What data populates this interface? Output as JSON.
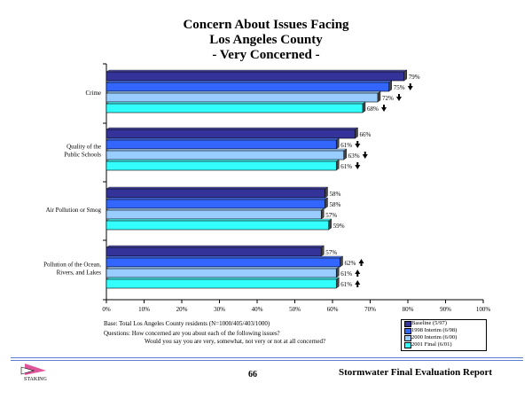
{
  "title_lines": [
    "Concern About Issues Facing",
    "Los Angeles County",
    "- Very Concerned -"
  ],
  "chart_data": {
    "type": "bar",
    "orientation": "horizontal",
    "title": "Concern About Issues Facing Los Angeles County - Very Concerned -",
    "categories": [
      "Crime",
      "Quality of the Public Schools",
      "Air Pollution or Smog",
      "Pollution of the Ocean, Rivers, and Lakes"
    ],
    "category_label_lines": [
      [
        "Crime"
      ],
      [
        "Quality of the",
        "Public Schools"
      ],
      [
        "Air Pollution or Smog"
      ],
      [
        "Pollution of the Ocean,",
        "Rivers, and Lakes"
      ]
    ],
    "series": [
      {
        "name": "Baseline (5/97)",
        "color": "#333399",
        "values": [
          79,
          66,
          58,
          57
        ],
        "labels": [
          "79%",
          "66%",
          "58%",
          "57%"
        ],
        "arrows": [
          "",
          "",
          "",
          ""
        ]
      },
      {
        "name": "1998 Interim (6/98)",
        "color": "#3366ff",
        "values": [
          75,
          61,
          58,
          62
        ],
        "labels": [
          "75%",
          "61%",
          "58%",
          "62%"
        ],
        "arrows": [
          "down",
          "down",
          "",
          "up"
        ]
      },
      {
        "name": "2000 Interim (6/00)",
        "color": "#99ccff",
        "values": [
          72,
          63,
          57,
          61
        ],
        "labels": [
          "72%",
          "63%",
          "57%",
          "61%"
        ],
        "arrows": [
          "down",
          "down",
          "",
          "up"
        ]
      },
      {
        "name": "2001 Final (6/01)",
        "color": "#33ffff",
        "values": [
          68,
          61,
          59,
          61
        ],
        "labels": [
          "68%",
          "61%",
          "59%",
          "61%"
        ],
        "arrows": [
          "down",
          "down",
          "",
          "up"
        ]
      }
    ],
    "xlim": [
      0,
      100
    ],
    "xticks": [
      "0%",
      "10%",
      "20%",
      "30%",
      "40%",
      "50%",
      "60%",
      "70%",
      "80%",
      "90%",
      "100%"
    ],
    "grid": false,
    "legend_position": "bottom-right"
  },
  "notes": {
    "base": "Base: Total Los Angeles County residents (N=1000/405/403/1000)",
    "questions": "Questions:  How concerned are you about each of the following issues?",
    "questions_2": "Would you say you are very, somewhat, not very or not at all concerned?"
  },
  "footer": {
    "logo_text": "STAKING",
    "page_number": "66",
    "report_title": "Stormwater Final Evaluation Report"
  }
}
